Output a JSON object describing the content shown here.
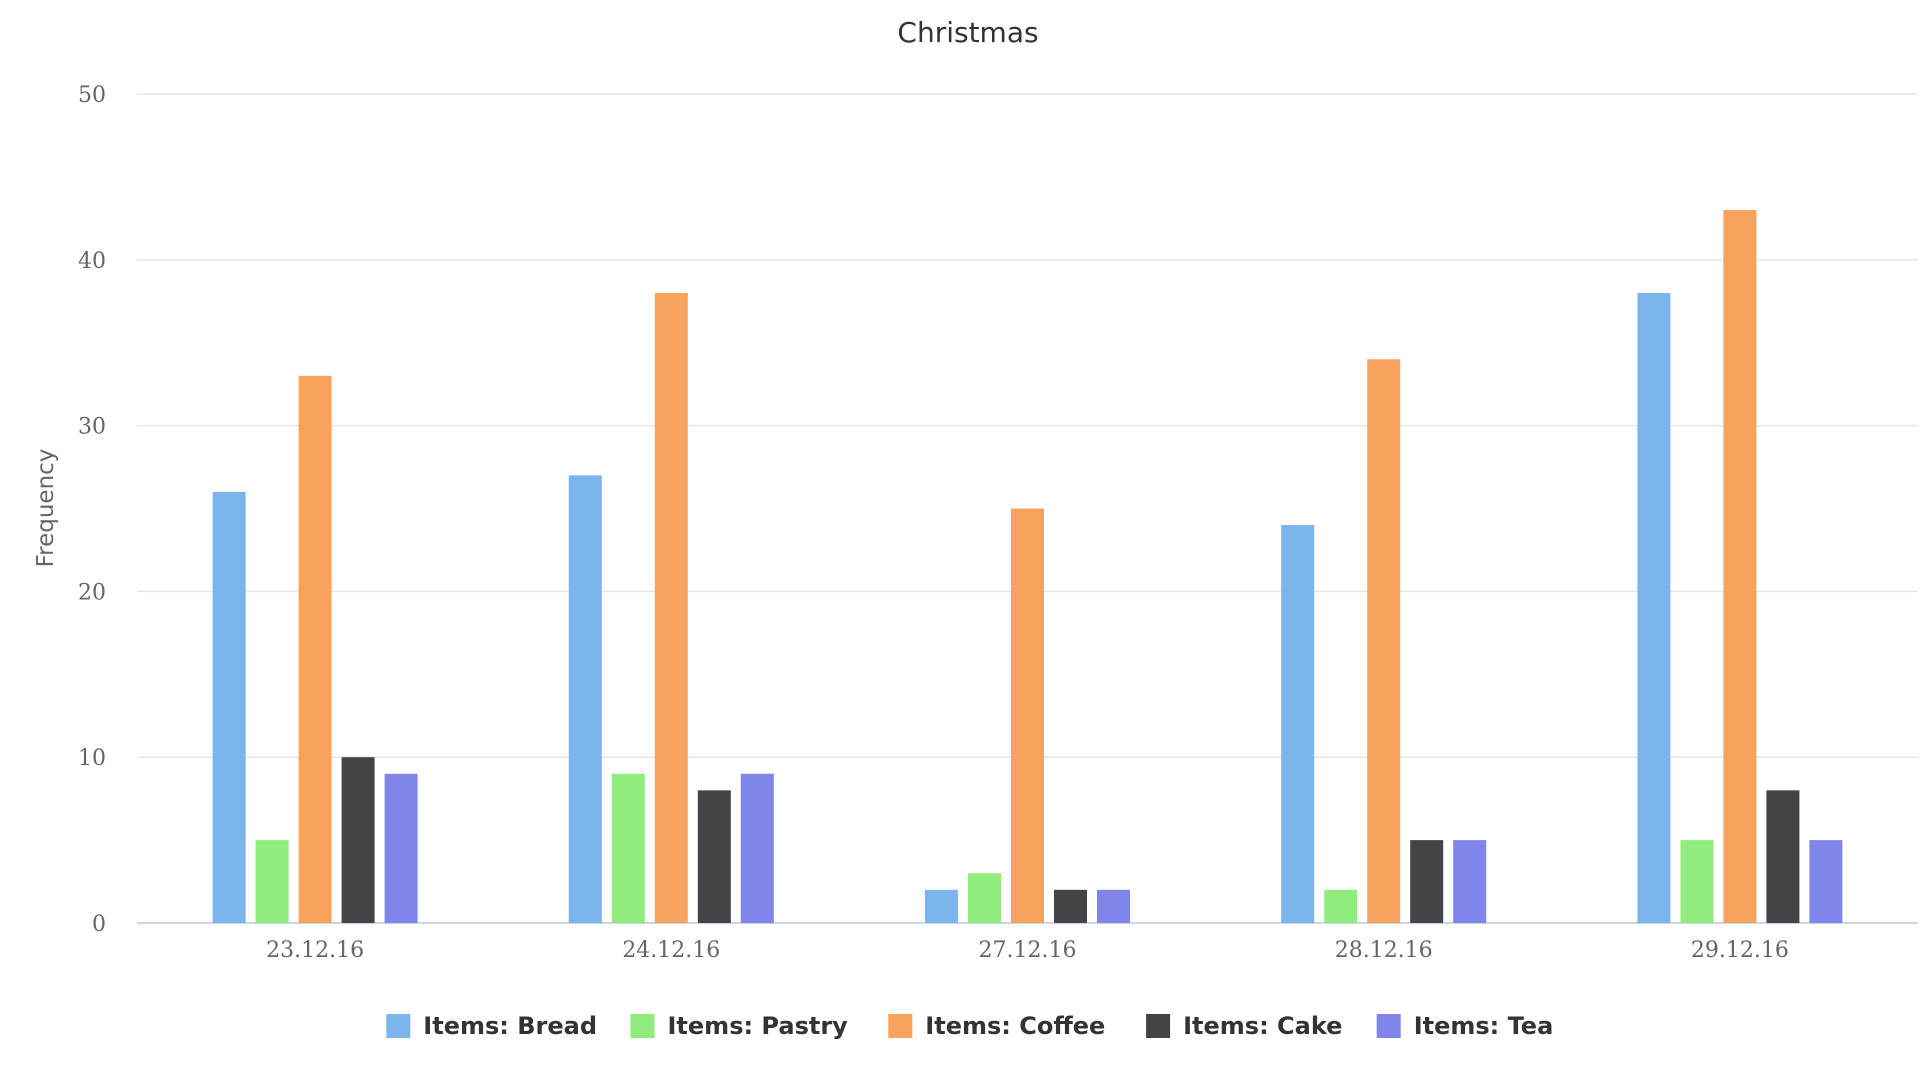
{
  "chart_data": {
    "type": "bar",
    "title": "Christmas",
    "xlabel": "",
    "ylabel": "Frequency",
    "ylim": [
      0,
      50
    ],
    "yticks": [
      0,
      10,
      20,
      30,
      40,
      50
    ],
    "grid": true,
    "legend_position": "bottom-center",
    "categories": [
      "23.12.16",
      "24.12.16",
      "27.12.16",
      "28.12.16",
      "29.12.16"
    ],
    "series": [
      {
        "name": "Items: Bread",
        "color": "#7cb5ec",
        "values": [
          26,
          27,
          2,
          24,
          38
        ]
      },
      {
        "name": "Items: Pastry",
        "color": "#90ed7d",
        "values": [
          5,
          9,
          3,
          2,
          5
        ]
      },
      {
        "name": "Items: Coffee",
        "color": "#f7a35c",
        "values": [
          33,
          38,
          25,
          34,
          43
        ]
      },
      {
        "name": "Items: Cake",
        "color": "#434348",
        "values": [
          10,
          8,
          2,
          5,
          8
        ]
      },
      {
        "name": "Items: Tea",
        "color": "#8085e9",
        "values": [
          9,
          9,
          2,
          5,
          5
        ]
      }
    ]
  }
}
